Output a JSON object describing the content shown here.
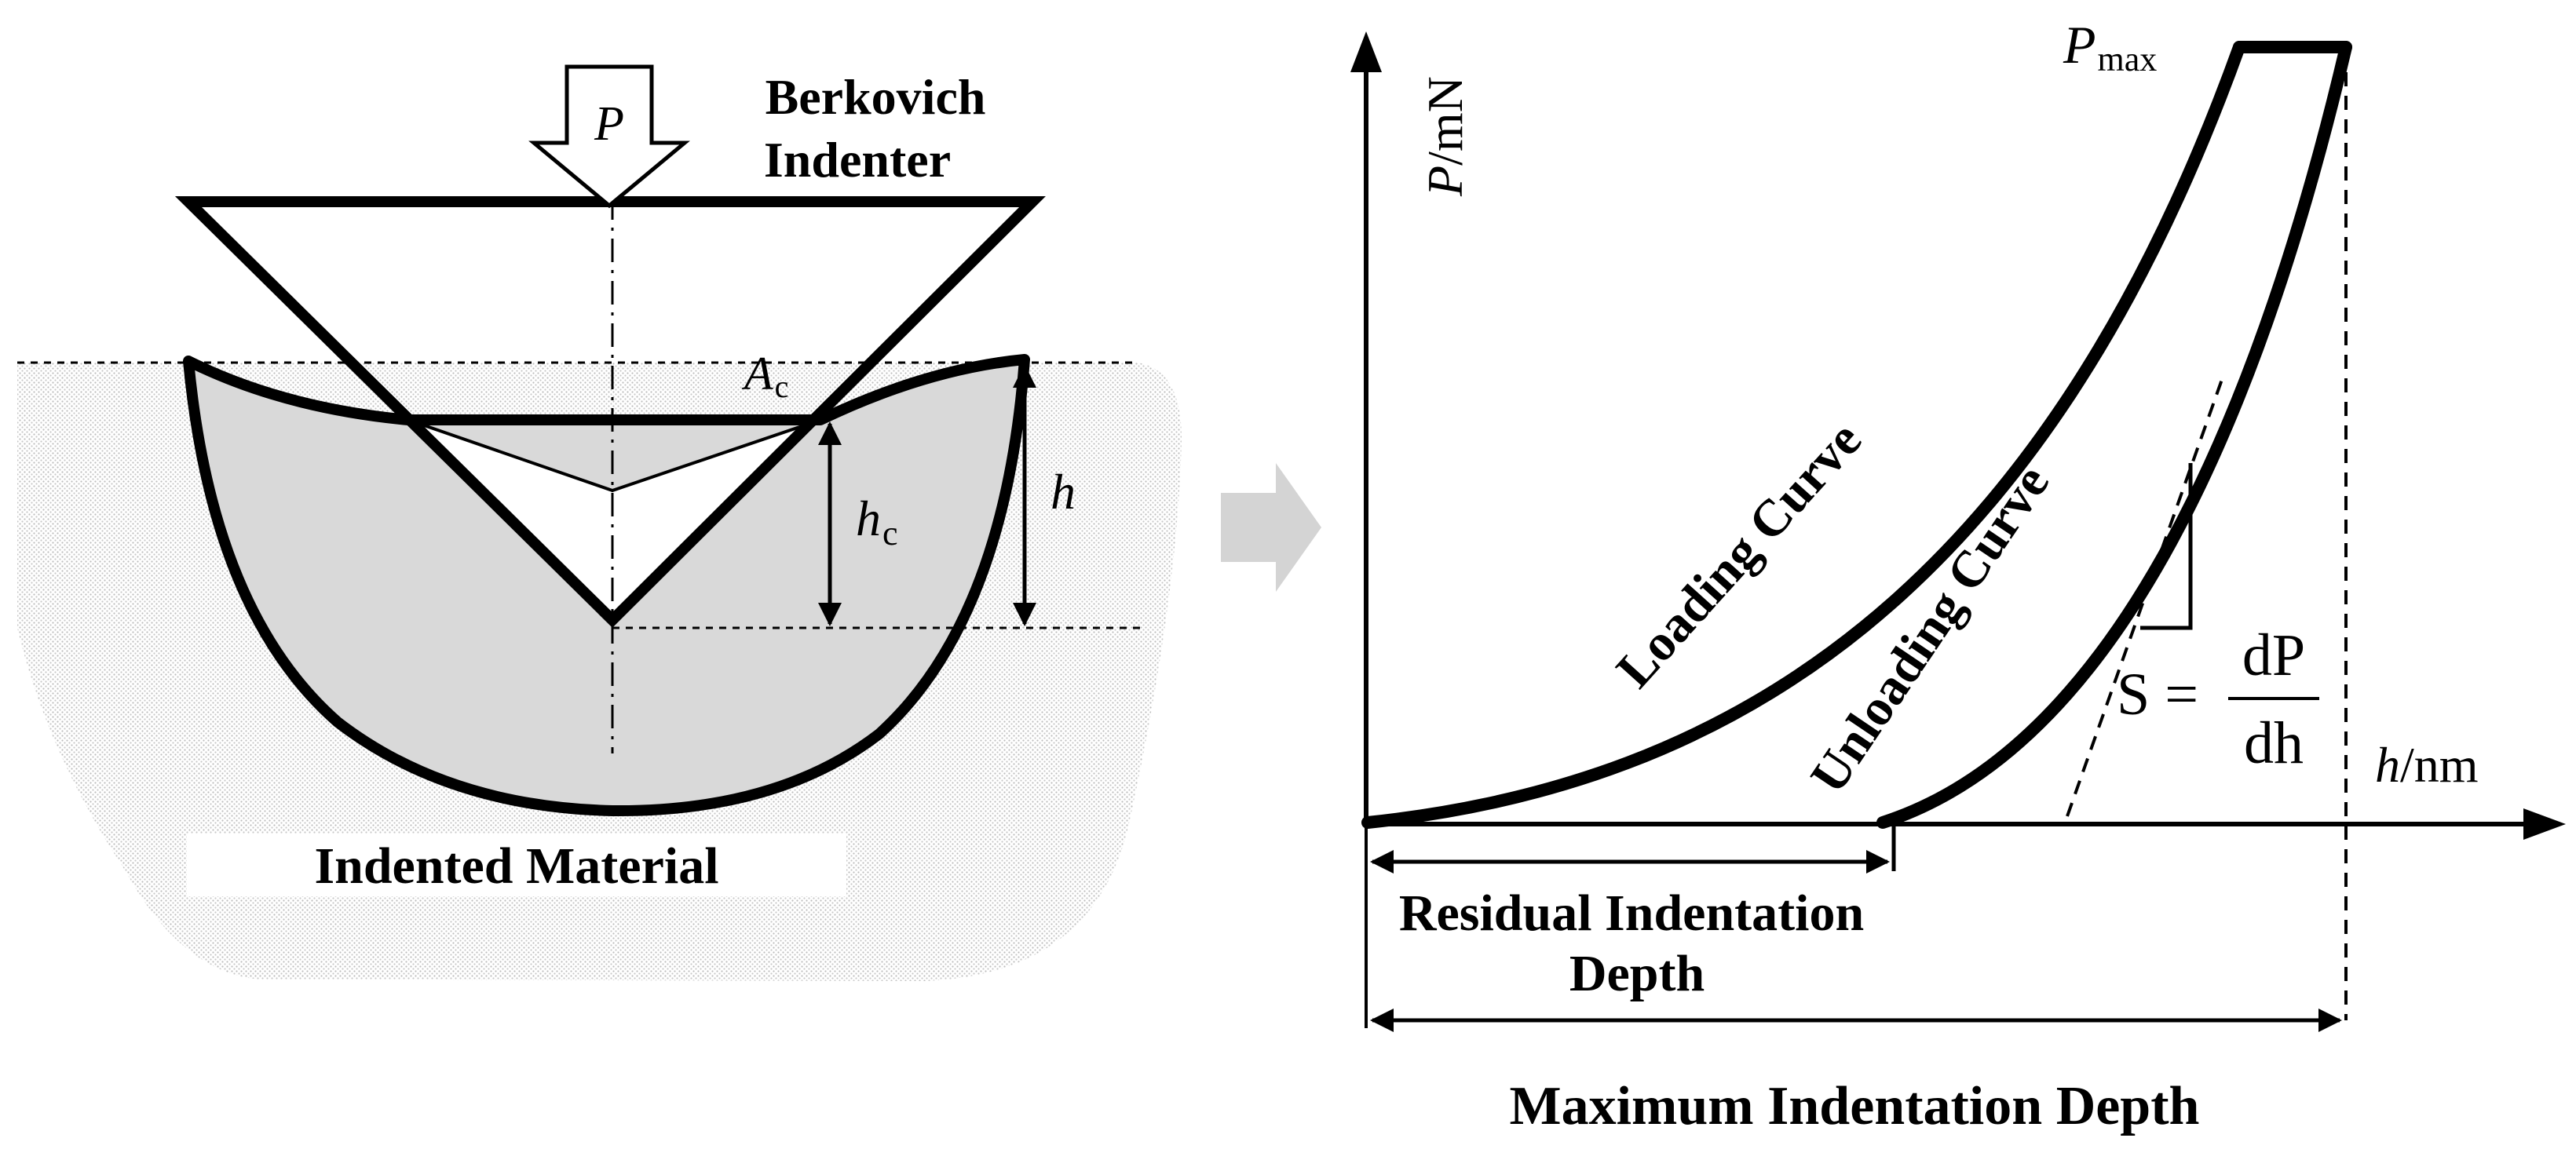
{
  "indenter_diagram": {
    "load_symbol": "P",
    "indenter_label_line1": "Berkovich",
    "indenter_label_line2": "Indenter",
    "contact_area_symbol": "A",
    "contact_area_subscript": "c",
    "contact_depth_symbol": "h",
    "contact_depth_subscript": "c",
    "total_depth_symbol": "h",
    "material_label": "Indented Material"
  },
  "load_depth_plot": {
    "y_axis_symbol": "P",
    "y_axis_unit": "/mN",
    "x_axis_symbol": "h",
    "x_axis_unit": "/nm",
    "pmax_symbol": "P",
    "pmax_subscript": "max",
    "loading_label": "Loading Curve",
    "unloading_label": "Unloading Curve",
    "stiffness_lhs": "S =",
    "stiffness_numerator": "dP",
    "stiffness_denominator": "dh",
    "residual_label_line1": "Residual Indentation",
    "residual_label_line2": "Depth",
    "max_depth_label": "Maximum Indentation Depth"
  },
  "colors": {
    "ink": "#000000",
    "material_fill": "#d9d9d9",
    "texture_dot": "#bdbdbd",
    "arrow_gray": "#d4d4d4"
  }
}
